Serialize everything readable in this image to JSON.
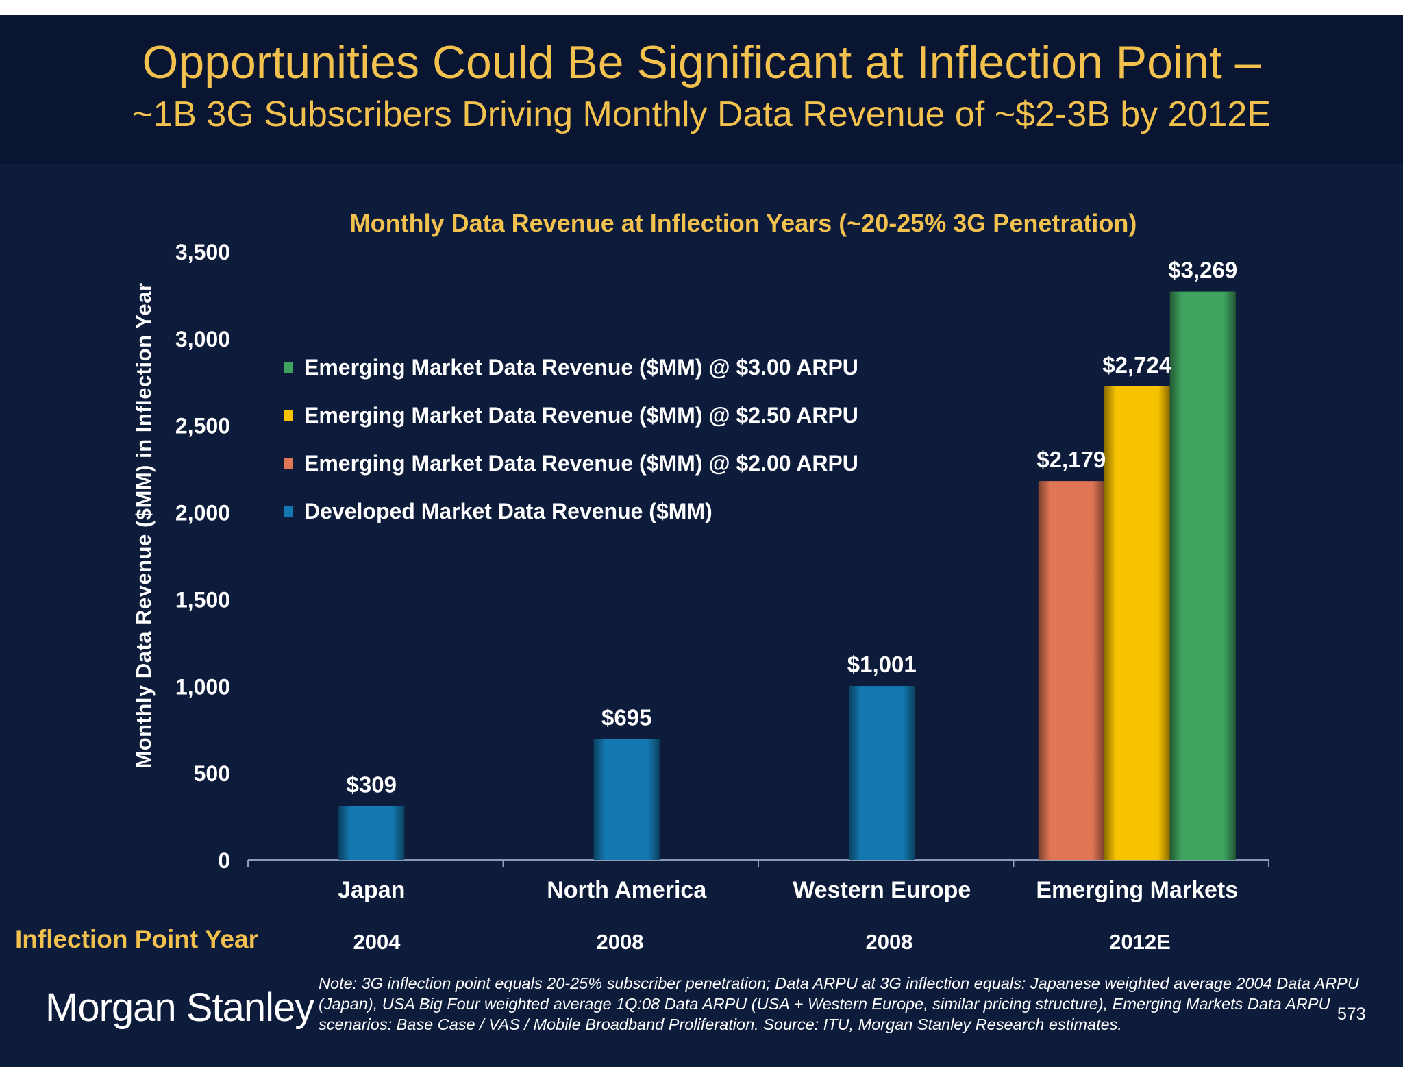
{
  "slide": {
    "title_line1": "Opportunities Could Be Significant at Inflection Point –",
    "title_line2": "~1B 3G Subscribers Driving Monthly Data Revenue of ~$2-3B by 2012E",
    "inflection_label": "Inflection Point Year",
    "years": [
      "2004",
      "2008",
      "2008",
      "2012E"
    ],
    "logo": "Morgan Stanley",
    "note": "Note: 3G inflection point equals 20-25% subscriber penetration; Data ARPU at 3G inflection equals: Japanese weighted average 2004 Data ARPU (Japan), USA Big Four weighted average 1Q:08 Data ARPU (USA + Western Europe, similar pricing structure), Emerging Markets Data ARPU scenarios: Base Case / VAS / Mobile Broadband Proliferation. Source: ITU, Morgan Stanley Research estimates.",
    "page_number": "573"
  },
  "colors": {
    "background": "#0e1c3c",
    "title_band": "#0a1631",
    "title_text": "#f2c14e",
    "blue": "#1478b0",
    "red": "#e07656",
    "yellow": "#f7c300",
    "green": "#3fa35f"
  },
  "chart_data": {
    "type": "bar",
    "title": "Monthly Data Revenue at Inflection Years (~20-25% 3G Penetration)",
    "ylabel": "Monthly Data Revenue ($MM) in Inflection Year",
    "xlabel": "",
    "ylim": [
      0,
      3500
    ],
    "yticks": [
      "0",
      "500",
      "1,000",
      "1,500",
      "2,000",
      "2,500",
      "3,000",
      "3,500"
    ],
    "ytick_values": [
      0,
      500,
      1000,
      1500,
      2000,
      2500,
      3000,
      3500
    ],
    "categories": [
      "Japan",
      "North America",
      "Western Europe",
      "Emerging Markets"
    ],
    "legend_position": "upper-left inside plot",
    "legend": [
      {
        "label": "Emerging Market Data Revenue ($MM) @ $3.00 ARPU",
        "color": "#3fa35f"
      },
      {
        "label": "Emerging Market Data Revenue ($MM) @ $2.50 ARPU",
        "color": "#f7c300"
      },
      {
        "label": "Emerging Market Data Revenue ($MM) @ $2.00 ARPU",
        "color": "#e07656"
      },
      {
        "label": "Developed Market Data Revenue ($MM)",
        "color": "#1478b0"
      }
    ],
    "bars": [
      {
        "category": "Japan",
        "series": "Developed Market Data Revenue ($MM)",
        "value": 309,
        "label": "$309",
        "color": "#1478b0"
      },
      {
        "category": "North America",
        "series": "Developed Market Data Revenue ($MM)",
        "value": 695,
        "label": "$695",
        "color": "#1478b0"
      },
      {
        "category": "Western Europe",
        "series": "Developed Market Data Revenue ($MM)",
        "value": 1001,
        "label": "$1,001",
        "color": "#1478b0"
      },
      {
        "category": "Emerging Markets",
        "series": "Emerging Market Data Revenue ($MM) @ $2.00 ARPU",
        "value": 2179,
        "label": "$2,179",
        "color": "#e07656"
      },
      {
        "category": "Emerging Markets",
        "series": "Emerging Market Data Revenue ($MM) @ $2.50 ARPU",
        "value": 2724,
        "label": "$2,724",
        "color": "#f7c300"
      },
      {
        "category": "Emerging Markets",
        "series": "Emerging Market Data Revenue ($MM) @ $3.00 ARPU",
        "value": 3269,
        "label": "$3,269",
        "color": "#3fa35f"
      }
    ],
    "grid": false
  }
}
